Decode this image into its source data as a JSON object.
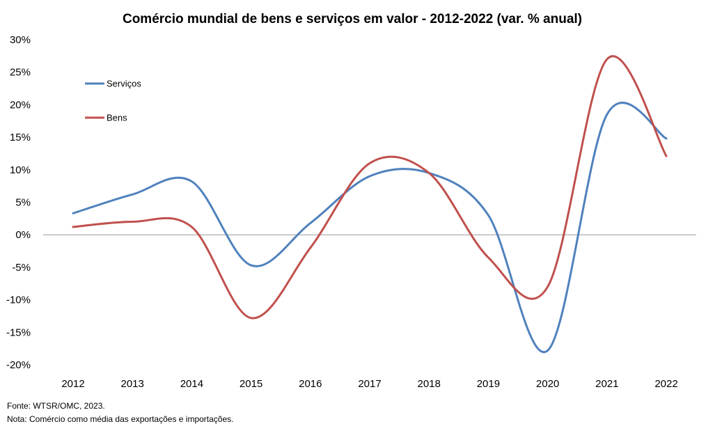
{
  "chart_data": {
    "type": "line",
    "title": "Comércio mundial de bens e serviços em valor - 2012-2022  (var. % anual)",
    "xlabel": "",
    "ylabel": "",
    "x": [
      "2012",
      "2013",
      "2014",
      "2015",
      "2016",
      "2017",
      "2018",
      "2019",
      "2020",
      "2021",
      "2022"
    ],
    "y_ticks": [
      "30%",
      "25%",
      "20%",
      "15%",
      "10%",
      "5%",
      "0%",
      "-5%",
      "-10%",
      "-15%",
      "-20%"
    ],
    "ylim": [
      -20,
      30
    ],
    "grid": false,
    "legend_position": "top-left",
    "series": [
      {
        "name": "Serviços",
        "color": "#4F81BD",
        "values": [
          3.3,
          6.2,
          8.2,
          -4.7,
          1.8,
          9.0,
          9.5,
          3.0,
          -17.8,
          18.5,
          14.8
        ]
      },
      {
        "name": "Bens",
        "color": "#C0504D",
        "values": [
          1.2,
          2.0,
          1.2,
          -12.8,
          -2.0,
          11.0,
          9.5,
          -3.5,
          -8.0,
          27.0,
          12.1
        ]
      }
    ]
  },
  "footer": {
    "source": "Fonte: WTSR/OMC, 2023.",
    "note": "Nota: Comércio como média das exportações e importações."
  }
}
